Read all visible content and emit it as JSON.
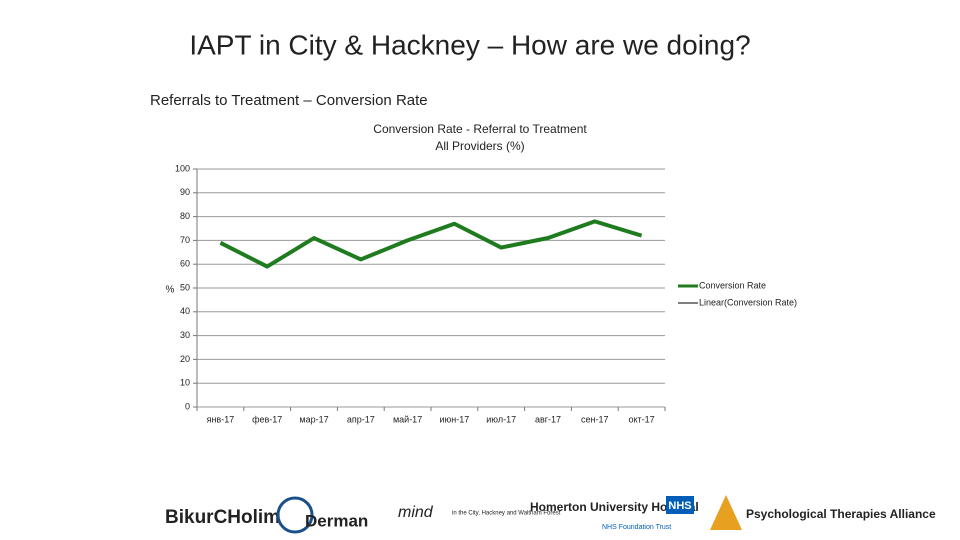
{
  "title": "IAPT in City & Hackney – How are we doing?",
  "subtitle": "Referrals to Treatment – Conversion Rate",
  "chart_data": {
    "type": "line",
    "title": [
      "Conversion Rate - Referral to Treatment",
      "All Providers (%)"
    ],
    "y_label": "%",
    "categories": [
      "янв-17",
      "фев-17",
      "мар-17",
      "апр-17",
      "май-17",
      "июн-17",
      "июл-17",
      "авг-17",
      "сен-17",
      "окт-17"
    ],
    "series": [
      {
        "name": "Conversion Rate",
        "color": "#1e7b1e",
        "values": [
          69,
          59,
          71,
          62,
          70,
          77,
          67,
          71,
          78,
          72
        ]
      }
    ],
    "trendline": {
      "name": "Linear(Conversion Rate)",
      "color": "#000000"
    },
    "ylim": [
      0,
      100
    ],
    "yticks": [
      0,
      10,
      20,
      30,
      40,
      50,
      60,
      70,
      80,
      90,
      100
    ],
    "grid": true,
    "legend": "right"
  },
  "logos": [
    "BikurCHolim",
    "Derman",
    "mind",
    "in the City, Hackney and Waltham Forest",
    "Homerton University Hospital",
    "NHS",
    "NHS Foundation Trust",
    "Psychological Therapies Alliance"
  ]
}
